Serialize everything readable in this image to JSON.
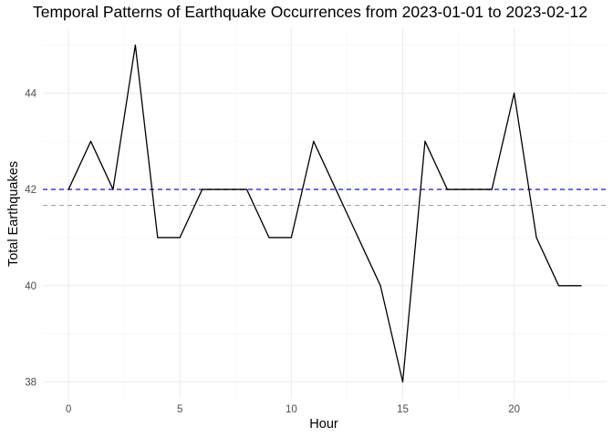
{
  "chart_data": {
    "type": "line",
    "title": "Temporal Patterns of Earthquake Occurrences from 2023-01-01 to 2023-02-12",
    "xlabel": "Hour",
    "ylabel": "Total Earthquakes",
    "x": [
      0,
      1,
      2,
      3,
      4,
      5,
      6,
      7,
      8,
      9,
      10,
      11,
      12,
      13,
      14,
      15,
      16,
      17,
      18,
      19,
      20,
      21,
      22,
      23
    ],
    "series": [
      {
        "color": "#000000",
        "values": [
          42,
          43,
          42,
          45,
          41,
          41,
          42,
          42,
          42,
          41,
          41,
          43,
          42,
          41,
          40,
          38,
          43,
          42,
          42,
          42,
          44,
          41,
          40,
          40
        ]
      }
    ],
    "reference_lines": [
      {
        "style": "dashed",
        "color": "#2a2ad6",
        "y": 42
      },
      {
        "style": "dashed",
        "color": "#a6a6a6",
        "y": 41.67
      }
    ],
    "xlim": [
      -1.15,
      24.15
    ],
    "ylim": [
      37.65,
      45.35
    ],
    "xticks": [
      0,
      5,
      10,
      15,
      20
    ],
    "yticks": [
      38,
      40,
      42,
      44
    ],
    "grid": true,
    "legend": "none"
  }
}
